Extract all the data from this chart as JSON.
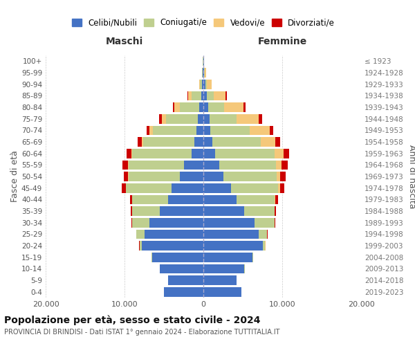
{
  "age_groups": [
    "0-4",
    "5-9",
    "10-14",
    "15-19",
    "20-24",
    "25-29",
    "30-34",
    "35-39",
    "40-44",
    "45-49",
    "50-54",
    "55-59",
    "60-64",
    "65-69",
    "70-74",
    "75-79",
    "80-84",
    "85-89",
    "90-94",
    "95-99",
    "100+"
  ],
  "birth_years": [
    "2019-2023",
    "2014-2018",
    "2009-2013",
    "2004-2008",
    "1999-2003",
    "1994-1998",
    "1989-1993",
    "1984-1988",
    "1979-1983",
    "1974-1978",
    "1969-1973",
    "1964-1968",
    "1959-1963",
    "1954-1958",
    "1949-1953",
    "1944-1948",
    "1939-1943",
    "1934-1938",
    "1929-1933",
    "1924-1928",
    "≤ 1923"
  ],
  "male": {
    "celibi": [
      5000,
      4500,
      5500,
      6500,
      7800,
      7500,
      6800,
      5500,
      4500,
      4000,
      3000,
      2500,
      1500,
      1100,
      900,
      700,
      500,
      300,
      150,
      80,
      30
    ],
    "coniugati": [
      5,
      5,
      20,
      100,
      300,
      1000,
      2200,
      3500,
      4500,
      5800,
      6500,
      7000,
      7500,
      6500,
      5500,
      4000,
      2500,
      1200,
      250,
      80,
      20
    ],
    "vedovi": [
      0,
      0,
      1,
      1,
      2,
      2,
      3,
      5,
      10,
      20,
      30,
      50,
      100,
      200,
      400,
      600,
      700,
      400,
      150,
      30,
      5
    ],
    "divorziati": [
      2,
      2,
      5,
      10,
      20,
      50,
      100,
      200,
      300,
      500,
      600,
      700,
      600,
      500,
      400,
      300,
      200,
      80,
      20,
      5,
      2
    ]
  },
  "female": {
    "nubili": [
      4800,
      4200,
      5200,
      6200,
      7500,
      7000,
      6500,
      5200,
      4200,
      3500,
      2500,
      2000,
      1500,
      1100,
      900,
      750,
      600,
      450,
      250,
      120,
      50
    ],
    "coniugate": [
      5,
      8,
      30,
      120,
      350,
      1100,
      2500,
      3800,
      4800,
      6000,
      6800,
      7200,
      7500,
      6200,
      5000,
      3500,
      2000,
      900,
      200,
      60,
      15
    ],
    "vedove": [
      1,
      1,
      2,
      3,
      5,
      10,
      20,
      50,
      100,
      200,
      400,
      700,
      1200,
      1800,
      2500,
      2800,
      2500,
      1500,
      600,
      150,
      20
    ],
    "divorziate": [
      2,
      2,
      5,
      10,
      25,
      50,
      100,
      200,
      350,
      600,
      700,
      800,
      700,
      600,
      500,
      400,
      250,
      100,
      30,
      8,
      2
    ]
  },
  "colors": {
    "celibi_nubili": "#4472C4",
    "coniugati": "#BFCF8F",
    "vedovi": "#F5C87A",
    "divorziati": "#CC0000"
  },
  "xlim": 20000,
  "title": "Popolazione per età, sesso e stato civile - 2024",
  "subtitle": "PROVINCIA DI BRINDISI - Dati ISTAT 1° gennaio 2024 - Elaborazione TUTTITALIA.IT",
  "ylabel_left": "Fasce di età",
  "ylabel_right": "Anni di nascita",
  "xlabel_left": "Maschi",
  "xlabel_right": "Femmine",
  "xticks": [
    -20000,
    -10000,
    0,
    10000,
    20000
  ],
  "xtick_labels": [
    "20.000",
    "10.000",
    "0",
    "10.000",
    "20.000"
  ]
}
